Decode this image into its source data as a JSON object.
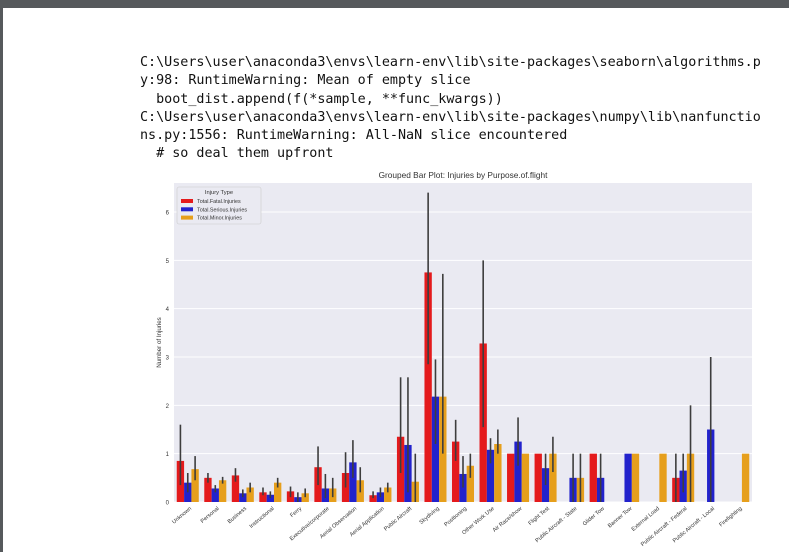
{
  "output": {
    "lines": [
      "C:\\Users\\user\\anaconda3\\envs\\learn-env\\lib\\site-packages\\seaborn\\algorithms.p",
      "y:98: RuntimeWarning: Mean of empty slice",
      "  boot_dist.append(f(*sample, **func_kwargs))",
      "C:\\Users\\user\\anaconda3\\envs\\learn-env\\lib\\site-packages\\numpy\\lib\\nanfunctio",
      "ns.py:1556: RuntimeWarning: All-NaN slice encountered",
      "  # so deal them upfront"
    ]
  },
  "chart_data": {
    "type": "bar",
    "title": "Grouped Bar Plot: Injuries by Purpose.of.flight",
    "xlabel": "",
    "ylabel": "Number of Injuries",
    "ylim": [
      0,
      6.6
    ],
    "yticks": [
      0,
      1,
      2,
      3,
      4,
      5,
      6
    ],
    "grid": true,
    "legend": {
      "title": "Injury Type",
      "placement": "top-left"
    },
    "categories": [
      "Unknown",
      "Personal",
      "Business",
      "Instructional",
      "Ferry",
      "Executive/corporate",
      "Aerial Observation",
      "Aerial Application",
      "Public Aircraft",
      "Skydiving",
      "Positioning",
      "Other Work Use",
      "Air Race/show",
      "Flight Test",
      "Public Aircraft - State",
      "Glider Tow",
      "Banner Tow",
      "External Load",
      "Public Aircraft - Federal",
      "Public Aircraft - Local",
      "Firefighting"
    ],
    "series": [
      {
        "name": "Total.Fatal.Injuries",
        "color": "#e41a1c",
        "values": [
          0.85,
          0.5,
          0.55,
          0.2,
          0.22,
          0.72,
          0.6,
          0.14,
          1.35,
          4.75,
          1.25,
          3.28,
          1.0,
          1.0,
          null,
          1.0,
          null,
          null,
          0.5,
          null,
          null
        ],
        "err": [
          [
            0.35,
            1.6
          ],
          [
            0.4,
            0.6
          ],
          [
            0.42,
            0.7
          ],
          [
            0.14,
            0.3
          ],
          [
            0.1,
            0.32
          ],
          [
            0.35,
            1.15
          ],
          [
            0.3,
            1.03
          ],
          [
            0.08,
            0.22
          ],
          [
            0.6,
            2.58
          ],
          [
            2.85,
            6.4
          ],
          [
            0.85,
            1.7
          ],
          [
            1.55,
            5.0
          ],
          null,
          null,
          null,
          [
            1.0,
            1.0
          ],
          null,
          null,
          [
            0.0,
            1.0
          ],
          null,
          null
        ]
      },
      {
        "name": "Total.Serious.Injuries",
        "color": "#2222cc",
        "values": [
          0.4,
          0.28,
          0.18,
          0.15,
          0.1,
          0.28,
          0.82,
          0.2,
          1.18,
          2.18,
          0.58,
          1.08,
          1.25,
          0.7,
          0.5,
          0.5,
          1.0,
          null,
          0.65,
          1.5,
          null
        ],
        "err": [
          [
            0.2,
            0.6
          ],
          [
            0.2,
            0.35
          ],
          [
            0.1,
            0.26
          ],
          [
            0.08,
            0.22
          ],
          [
            0.0,
            0.2
          ],
          [
            0.08,
            0.58
          ],
          [
            0.5,
            1.28
          ],
          [
            0.1,
            0.3
          ],
          [
            0.2,
            2.58
          ],
          [
            1.2,
            2.95
          ],
          [
            0.3,
            0.95
          ],
          [
            0.8,
            1.32
          ],
          [
            0.75,
            1.75
          ],
          [
            0.35,
            1.0
          ],
          [
            0.0,
            1.0
          ],
          [
            0.0,
            1.0
          ],
          null,
          null,
          [
            0.2,
            1.0
          ],
          [
            0.0,
            3.0
          ],
          null
        ]
      },
      {
        "name": "Total.Minor.Injuries",
        "color": "#e69f1c",
        "values": [
          0.68,
          0.45,
          0.3,
          0.4,
          0.18,
          0.28,
          0.45,
          0.3,
          0.42,
          2.18,
          0.75,
          1.2,
          1.0,
          1.0,
          0.5,
          null,
          1.0,
          1.0,
          1.0,
          null,
          1.0
        ],
        "err": [
          [
            0.45,
            0.95
          ],
          [
            0.38,
            0.52
          ],
          [
            0.2,
            0.4
          ],
          [
            0.3,
            0.5
          ],
          [
            0.1,
            0.28
          ],
          [
            0.1,
            0.5
          ],
          [
            0.2,
            0.72
          ],
          [
            0.2,
            0.4
          ],
          [
            0.0,
            1.0
          ],
          [
            1.0,
            4.72
          ],
          [
            0.5,
            1.0
          ],
          [
            1.0,
            1.5
          ],
          null,
          [
            0.62,
            1.35
          ],
          [
            0.0,
            1.0
          ],
          null,
          null,
          null,
          [
            0.0,
            2.0
          ],
          null,
          null
        ]
      }
    ]
  }
}
